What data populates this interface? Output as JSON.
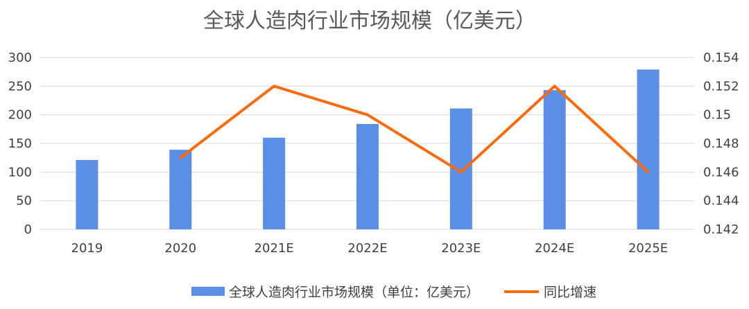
{
  "chart_data": {
    "type": "bar",
    "title": "全球人造肉行业市场规模（亿美元）",
    "categories": [
      "2019",
      "2020",
      "2021E",
      "2022E",
      "2023E",
      "2024E",
      "2025E"
    ],
    "series": [
      {
        "name": "全球人造肉行业市场规模（单位：亿美元）",
        "type": "bar",
        "axis": "left",
        "color": "#5b8fe5",
        "values": [
          121,
          139,
          160,
          184,
          211,
          243,
          279
        ]
      },
      {
        "name": "同比增速",
        "type": "line",
        "axis": "right",
        "color": "#ff6a0a",
        "values": [
          null,
          0.147,
          0.152,
          0.15,
          0.146,
          0.152,
          0.146
        ]
      }
    ],
    "y_left": {
      "ylim": [
        0,
        300
      ],
      "ticks": [
        "0",
        "50",
        "100",
        "150",
        "200",
        "250",
        "300"
      ]
    },
    "y_right": {
      "ylim": [
        0.142,
        0.154
      ],
      "ticks": [
        "0.142",
        "0.144",
        "0.146",
        "0.148",
        "0.15",
        "0.152",
        "0.154"
      ]
    },
    "grid": true,
    "legend": "bottom"
  }
}
